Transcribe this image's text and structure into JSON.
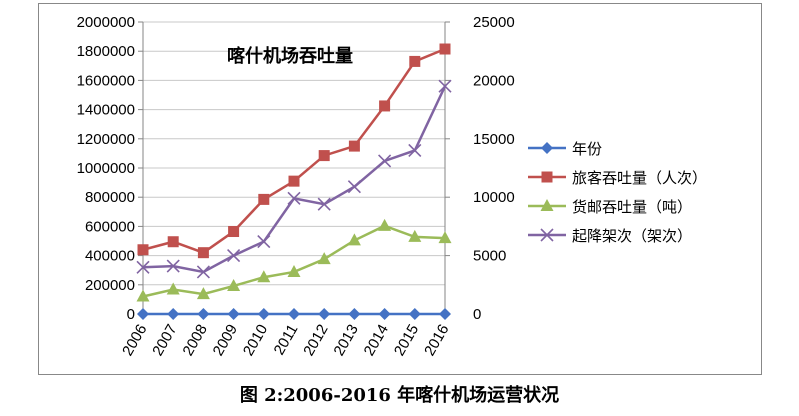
{
  "caption": "图 2:2006-2016 年喀什机场运营状况",
  "chart_data": {
    "type": "line",
    "title": "喀什机场吞吐量",
    "categories": [
      "2006",
      "2007",
      "2008",
      "2009",
      "2010",
      "2011",
      "2012",
      "2013",
      "2014",
      "2015",
      "2016"
    ],
    "y_left": {
      "ylim": [
        0,
        2000000
      ],
      "ticks": [
        "0",
        "200000",
        "400000",
        "600000",
        "800000",
        "1000000",
        "1200000",
        "1400000",
        "1600000",
        "1800000",
        "2000000"
      ]
    },
    "y_right": {
      "ylim": [
        0,
        25000
      ],
      "ticks": [
        "0",
        "5000",
        "10000",
        "15000",
        "20000",
        "25000"
      ]
    },
    "grid": "horizontal",
    "legend_position": "right",
    "series": [
      {
        "name": "年份",
        "axis": "left",
        "color": "#4472C4",
        "marker": "diamond",
        "values": [
          0,
          0,
          0,
          0,
          0,
          0,
          0,
          0,
          0,
          0,
          0
        ]
      },
      {
        "name": "旅客吞吐量（人次）",
        "axis": "left",
        "color": "#C0504D",
        "marker": "square",
        "values": [
          440000,
          495000,
          420000,
          565000,
          785000,
          910000,
          1085000,
          1150000,
          1425000,
          1730000,
          1815000
        ]
      },
      {
        "name": "货邮吞吐量（吨）",
        "axis": "right",
        "color": "#9BBB59",
        "marker": "triangle",
        "values": [
          1500,
          2100,
          1700,
          2400,
          3150,
          3600,
          4700,
          6300,
          7550,
          6600,
          6500
        ]
      },
      {
        "name": "起降架次（架次）",
        "axis": "right",
        "color": "#8064A2",
        "marker": "x",
        "values": [
          4000,
          4100,
          3600,
          5000,
          6200,
          9900,
          9400,
          10900,
          13100,
          14000,
          19500
        ]
      }
    ]
  }
}
